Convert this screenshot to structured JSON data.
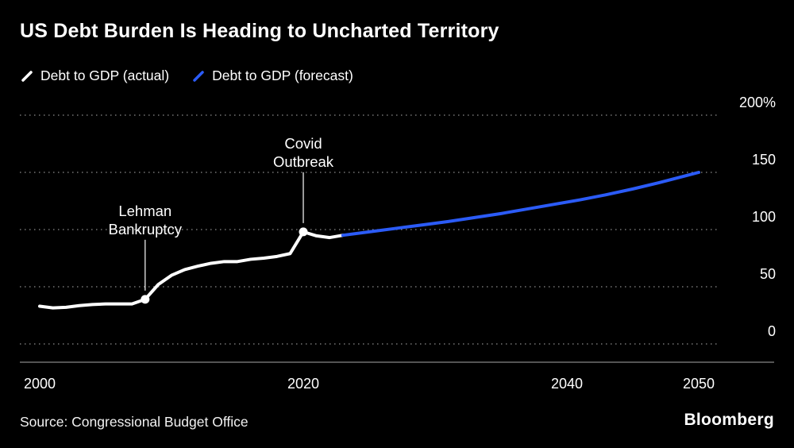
{
  "title": "US Debt Burden Is Heading to Uncharted Territory",
  "legend": [
    {
      "label": "Debt to GDP (actual)",
      "color": "#ffffff"
    },
    {
      "label": "Debt to GDP (forecast)",
      "color": "#2b5bf7"
    }
  ],
  "source": "Source: Congressional Budget Office",
  "brand": "Bloomberg",
  "chart_data": {
    "type": "line",
    "title": "US Debt Burden Is Heading to Uncharted Territory",
    "xlabel": "",
    "ylabel": "",
    "xlim": [
      1998.5,
      2051.5
    ],
    "ylim": [
      0,
      200
    ],
    "grid": "horizontal-dotted",
    "legend_position": "top-left",
    "x_ticks": [
      2000,
      2020,
      2040,
      2050
    ],
    "x_tick_labels": [
      "2000",
      "2020",
      "2040",
      "2050"
    ],
    "y_ticks": [
      0,
      50,
      100,
      150,
      200
    ],
    "y_tick_labels": [
      "0",
      "50",
      "100",
      "150",
      "200%"
    ],
    "series": [
      {
        "name": "Debt to GDP (actual)",
        "key": "actual-line",
        "color": "#ffffff",
        "x": [
          2000,
          2001,
          2002,
          2003,
          2004,
          2005,
          2006,
          2007,
          2008,
          2009,
          2010,
          2011,
          2012,
          2013,
          2014,
          2015,
          2016,
          2017,
          2018,
          2019,
          2020,
          2021,
          2022,
          2023
        ],
        "y": [
          33,
          31.5,
          32,
          33.5,
          34.5,
          35,
          35,
          35,
          39,
          52,
          60,
          65,
          68,
          70.5,
          72,
          72,
          74,
          75,
          76.5,
          79,
          98,
          94.5,
          93,
          95
        ]
      },
      {
        "name": "Debt to GDP (forecast)",
        "key": "forecast-line",
        "color": "#2b5bf7",
        "x": [
          2023,
          2025,
          2027,
          2029,
          2031,
          2033,
          2035,
          2037,
          2039,
          2041,
          2043,
          2045,
          2047,
          2049,
          2050
        ],
        "y": [
          95,
          98,
          101,
          104,
          107,
          110.5,
          114,
          118,
          122,
          126,
          130.5,
          135.5,
          141,
          147,
          150
        ]
      }
    ],
    "annotations": [
      {
        "label": "Lehman Bankruptcy",
        "label_lines": [
          "Lehman",
          "Bankruptcy"
        ],
        "x": 2008,
        "y": 39
      },
      {
        "label": "Covid Outbreak",
        "label_lines": [
          "Covid",
          "Outbreak"
        ],
        "x": 2020,
        "y": 98
      }
    ]
  }
}
